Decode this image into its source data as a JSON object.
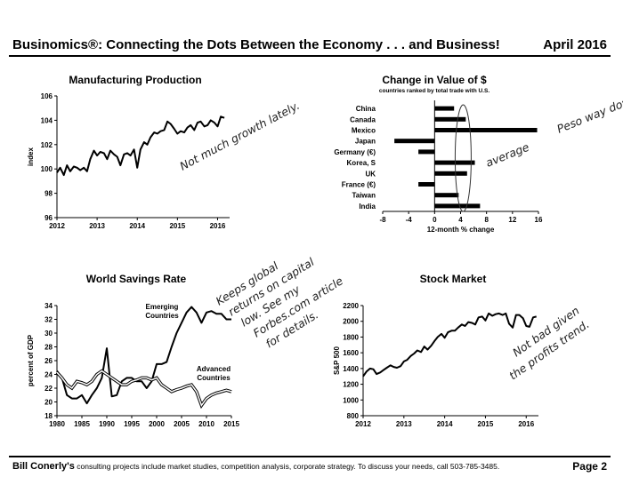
{
  "header": {
    "title": "Businomics®: Connecting the Dots Between the Economy . . . and Business!",
    "date": "April 2016"
  },
  "footer": {
    "author": "Bill Conerly's",
    "text": "consulting projects include market studies, competition analysis, corporate strategy.  To discuss your needs, call 503-785-3485.",
    "page": "Page 2"
  },
  "chart_data": [
    {
      "id": "manufacturing",
      "type": "line",
      "title": "Manufacturing Production",
      "ylabel": "index",
      "xlim": [
        2012,
        2016.3
      ],
      "ylim": [
        96,
        106
      ],
      "yticks": [
        96,
        98,
        100,
        102,
        104,
        106
      ],
      "xticks": [
        2012,
        2013,
        2014,
        2015,
        2016
      ],
      "series": [
        {
          "x": [
            2012.0,
            2012.08,
            2012.17,
            2012.25,
            2012.33,
            2012.42,
            2012.5,
            2012.58,
            2012.67,
            2012.75,
            2012.83,
            2012.92,
            2013.0,
            2013.08,
            2013.17,
            2013.25,
            2013.33,
            2013.42,
            2013.5,
            2013.58,
            2013.67,
            2013.75,
            2013.83,
            2013.92,
            2014.0,
            2014.08,
            2014.17,
            2014.25,
            2014.33,
            2014.42,
            2014.5,
            2014.58,
            2014.67,
            2014.75,
            2014.83,
            2014.92,
            2015.0,
            2015.08,
            2015.17,
            2015.25,
            2015.33,
            2015.42,
            2015.5,
            2015.58,
            2015.67,
            2015.75,
            2015.83,
            2015.92,
            2016.0,
            2016.08,
            2016.17
          ],
          "y": [
            99.7,
            100.1,
            99.5,
            100.3,
            99.8,
            100.2,
            100.1,
            99.9,
            100.1,
            99.8,
            100.8,
            101.5,
            101.1,
            101.4,
            101.3,
            100.8,
            101.5,
            101.2,
            101.0,
            100.3,
            101.2,
            101.3,
            101.1,
            101.6,
            100.1,
            101.6,
            102.2,
            102.0,
            102.6,
            103.0,
            102.9,
            103.1,
            103.2,
            103.9,
            103.7,
            103.3,
            102.9,
            103.1,
            103.0,
            103.4,
            103.6,
            103.2,
            103.8,
            103.9,
            103.5,
            103.6,
            104.0,
            103.8,
            103.5,
            104.3,
            104.2
          ]
        }
      ],
      "annotation": "Not much growth lately."
    },
    {
      "id": "dollar",
      "type": "bar",
      "orientation": "horizontal",
      "title": "Change in Value of $",
      "subtitle": "countries ranked by total trade with U.S.",
      "xlabel": "12-month % change",
      "xlim": [
        -8,
        16
      ],
      "xticks": [
        -8,
        -4,
        0,
        4,
        8,
        12,
        16
      ],
      "categories": [
        "China",
        "Canada",
        "Mexico",
        "Japan",
        "Germany (€)",
        "Korea, S",
        "UK",
        "France (€)",
        "Taiwan",
        "India"
      ],
      "values": [
        3.0,
        4.8,
        15.8,
        -6.2,
        -2.5,
        6.2,
        5.0,
        -2.5,
        3.7,
        7.0
      ],
      "annotations": [
        "average",
        "Peso way down"
      ]
    },
    {
      "id": "savings",
      "type": "line",
      "title": "World Savings Rate",
      "ylabel": "percent of GDP",
      "xlim": [
        1980,
        2015
      ],
      "ylim": [
        18,
        34
      ],
      "yticks": [
        18,
        20,
        22,
        24,
        26,
        28,
        30,
        32,
        34
      ],
      "xticks": [
        1980,
        1985,
        1990,
        1995,
        2000,
        2005,
        2010,
        2015
      ],
      "series": [
        {
          "name": "Emerging Countries",
          "x": [
            1980,
            1981,
            1982,
            1983,
            1984,
            1985,
            1986,
            1987,
            1988,
            1989,
            1990,
            1991,
            1992,
            1993,
            1994,
            1995,
            1996,
            1997,
            1998,
            1999,
            2000,
            2001,
            2002,
            2003,
            2004,
            2005,
            2006,
            2007,
            2008,
            2009,
            2010,
            2011,
            2012,
            2013,
            2014,
            2015
          ],
          "y": [
            24.5,
            23.5,
            21.0,
            20.5,
            20.5,
            21.0,
            19.8,
            21.0,
            22.0,
            23.5,
            27.8,
            20.8,
            21.0,
            23.0,
            23.5,
            23.5,
            23.0,
            23.0,
            22.0,
            23.0,
            25.5,
            25.5,
            25.8,
            28.0,
            30.0,
            31.5,
            33.0,
            33.8,
            33.0,
            31.5,
            33.0,
            33.2,
            32.8,
            32.8,
            32.0,
            32.0
          ]
        },
        {
          "name": "Advanced Countries",
          "x": [
            1980,
            1981,
            1982,
            1983,
            1984,
            1985,
            1986,
            1987,
            1988,
            1989,
            1990,
            1991,
            1992,
            1993,
            1994,
            1995,
            1996,
            1997,
            1998,
            1999,
            2000,
            2001,
            2002,
            2003,
            2004,
            2005,
            2006,
            2007,
            2008,
            2009,
            2010,
            2011,
            2012,
            2013,
            2014,
            2015
          ],
          "y": [
            24.3,
            23.5,
            22.5,
            22.0,
            23.0,
            22.8,
            22.5,
            23.0,
            24.0,
            24.5,
            24.0,
            23.5,
            23.0,
            22.5,
            22.5,
            23.0,
            23.2,
            23.5,
            23.5,
            23.2,
            23.5,
            22.5,
            22.0,
            21.5,
            21.8,
            22.0,
            22.3,
            22.5,
            21.5,
            19.5,
            20.5,
            21.0,
            21.3,
            21.5,
            21.7,
            21.5
          ]
        }
      ],
      "annotation": "Keeps global returns on capital low. See my Forbes.com article for details."
    },
    {
      "id": "stocks",
      "type": "line",
      "title": "Stock Market",
      "ylabel": "S&P 500",
      "xlim": [
        2012,
        2016.3
      ],
      "ylim": [
        800,
        2200
      ],
      "yticks": [
        800,
        1000,
        1200,
        1400,
        1600,
        1800,
        2000,
        2200
      ],
      "xticks": [
        2012,
        2013,
        2014,
        2015,
        2016
      ],
      "series": [
        {
          "x": [
            2012.0,
            2012.08,
            2012.17,
            2012.25,
            2012.33,
            2012.42,
            2012.5,
            2012.58,
            2012.67,
            2012.75,
            2012.83,
            2012.92,
            2013.0,
            2013.08,
            2013.17,
            2013.25,
            2013.33,
            2013.42,
            2013.5,
            2013.58,
            2013.67,
            2013.75,
            2013.83,
            2013.92,
            2014.0,
            2014.08,
            2014.17,
            2014.25,
            2014.33,
            2014.42,
            2014.5,
            2014.58,
            2014.67,
            2014.75,
            2014.83,
            2014.92,
            2015.0,
            2015.08,
            2015.17,
            2015.25,
            2015.33,
            2015.42,
            2015.5,
            2015.58,
            2015.67,
            2015.75,
            2015.83,
            2015.92,
            2016.0,
            2016.08,
            2016.17,
            2016.25
          ],
          "y": [
            1300,
            1360,
            1400,
            1390,
            1330,
            1350,
            1380,
            1410,
            1440,
            1420,
            1410,
            1430,
            1490,
            1510,
            1560,
            1590,
            1630,
            1610,
            1680,
            1640,
            1690,
            1750,
            1800,
            1840,
            1790,
            1860,
            1880,
            1880,
            1920,
            1960,
            1940,
            1990,
            1980,
            1960,
            2050,
            2060,
            2010,
            2100,
            2070,
            2090,
            2100,
            2080,
            2100,
            1970,
            1920,
            2080,
            2080,
            2040,
            1940,
            1930,
            2050,
            2060
          ]
        }
      ],
      "annotation": "Not bad given the profits trend."
    }
  ]
}
